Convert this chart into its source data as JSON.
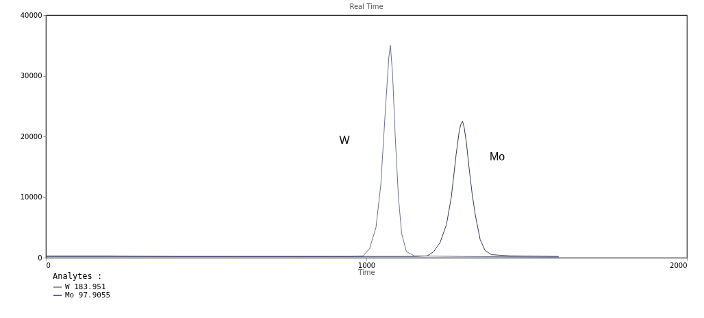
{
  "chart_data": {
    "type": "line",
    "title": "Real Time",
    "xlabel": "Time",
    "legend_title": "Analytes :",
    "legend": "bottom left",
    "marker": "none",
    "line_style": "solid",
    "grid": false,
    "xlim": [
      0,
      2000
    ],
    "xticks": [
      0,
      1000,
      2000
    ],
    "ylim": [
      0,
      40000
    ],
    "yticks": [
      0,
      10000,
      20000,
      30000,
      40000
    ],
    "series": [
      {
        "name": "W 183.951",
        "color": "#6a6f93",
        "x": [
          0,
          200,
          400,
          600,
          800,
          950,
          990,
          1010,
          1030,
          1045,
          1060,
          1070,
          1075,
          1082,
          1090,
          1100,
          1110,
          1125,
          1150,
          1300,
          1600
        ],
        "values": [
          300,
          300,
          200,
          200,
          200,
          200,
          300,
          1500,
          5000,
          12000,
          25000,
          33000,
          35000,
          30000,
          20000,
          10000,
          4000,
          1000,
          300,
          200,
          100
        ]
      },
      {
        "name": "Mo 97.9055",
        "color": "#2f3560",
        "x": [
          0,
          300,
          600,
          900,
          1150,
          1190,
          1210,
          1230,
          1250,
          1265,
          1280,
          1290,
          1295,
          1300,
          1305,
          1312,
          1320,
          1330,
          1340,
          1355,
          1370,
          1390,
          1450,
          1600
        ],
        "values": [
          200,
          200,
          200,
          200,
          200,
          300,
          1000,
          2500,
          5500,
          10000,
          17000,
          21000,
          22000,
          22500,
          21500,
          19000,
          15000,
          10500,
          7000,
          3000,
          1200,
          500,
          300,
          200
        ]
      }
    ],
    "annotations": [
      "W",
      "Mo"
    ]
  }
}
